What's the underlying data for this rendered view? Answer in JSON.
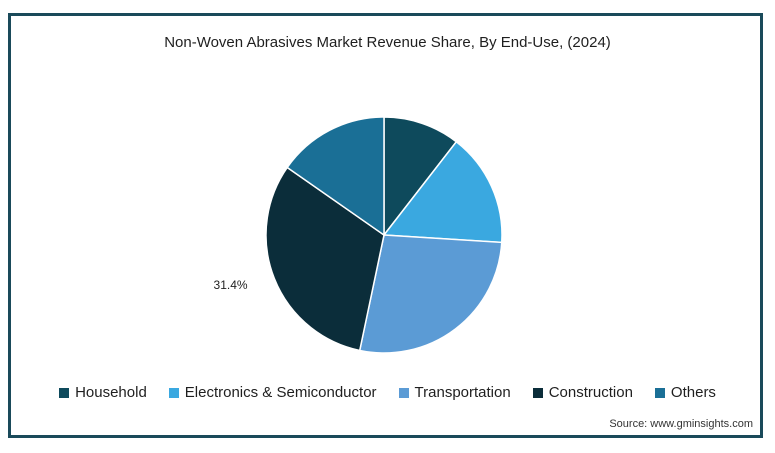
{
  "chart_data": {
    "type": "pie",
    "title": "Non-Woven Abrasives Market Revenue Share, By End-Use, (2024)",
    "categories": [
      "Household",
      "Electronics & Semiconductor",
      "Transportation",
      "Construction",
      "Others"
    ],
    "values": [
      10.5,
      15.5,
      27.3,
      31.4,
      15.3
    ],
    "colors": [
      "#0e4a5c",
      "#3aa8e0",
      "#5b9bd5",
      "#0b2d3a",
      "#1a6f96"
    ],
    "data_labels": [
      {
        "category": "Construction",
        "text": "31.4%"
      }
    ],
    "legend_position": "bottom"
  },
  "source": "Source: www.gminsights.com"
}
